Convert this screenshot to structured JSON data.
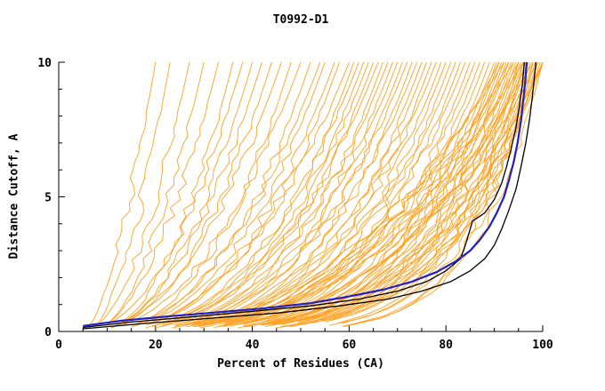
{
  "chart_data": {
    "type": "line",
    "title": "T0992-D1",
    "xlabel": "Percent of Residues (CA)",
    "ylabel": "Distance Cutoff, A",
    "xlim": [
      0,
      100
    ],
    "ylim": [
      0,
      10
    ],
    "x_ticks": [
      0,
      20,
      40,
      60,
      80,
      100
    ],
    "y_ticks": [
      0,
      5,
      10
    ],
    "x_minor_step": 5,
    "y_minor_step": 1,
    "grid": false,
    "legend": "none",
    "colors": {
      "background": "#FFFFFF",
      "axis": "#000000",
      "ensemble": "#FFA020",
      "highlight_blue": "#2020C8",
      "highlight_black": "#000000"
    },
    "ensemble_curves": {
      "description": "orange server-model cumulative accuracy curves; each param is [x_start_percent, x_at_cutoff_10, shape_exponent]",
      "color": "#FFA020",
      "stroke_width": 0.9,
      "seed": 1337,
      "points_per_curve": 32,
      "jitter_amplitude": 2.2,
      "params": [
        [
          5,
          20,
          1.6
        ],
        [
          6,
          23,
          1.7
        ],
        [
          5.5,
          27,
          1.8
        ],
        [
          7,
          30,
          1.8
        ],
        [
          6,
          33,
          1.9
        ],
        [
          8,
          36,
          2.0
        ],
        [
          5,
          38,
          2.0
        ],
        [
          6.5,
          40,
          2.1
        ],
        [
          7,
          42,
          2.0
        ],
        [
          5.5,
          44,
          2.2
        ],
        [
          6,
          46,
          2.1
        ],
        [
          8,
          48,
          2.3
        ],
        [
          5,
          50,
          2.2
        ],
        [
          7,
          52,
          2.4
        ],
        [
          6,
          54,
          2.3
        ],
        [
          5.5,
          55,
          2.5
        ],
        [
          8,
          57,
          2.4
        ],
        [
          6,
          58,
          2.6
        ],
        [
          5,
          60,
          2.5
        ],
        [
          7,
          61,
          2.7
        ],
        [
          6.5,
          62,
          2.6
        ],
        [
          5.5,
          63,
          2.8
        ],
        [
          8,
          64,
          2.7
        ],
        [
          6,
          65,
          2.9
        ],
        [
          5,
          66,
          2.8
        ],
        [
          7,
          67,
          3.0
        ],
        [
          6,
          68,
          2.9
        ],
        [
          5.5,
          69,
          3.1
        ],
        [
          8,
          70,
          3.0
        ],
        [
          6.5,
          71,
          3.2
        ],
        [
          5,
          72,
          3.1
        ],
        [
          7,
          73,
          3.3
        ],
        [
          6,
          74,
          3.2
        ],
        [
          5.5,
          75,
          3.4
        ],
        [
          8,
          76,
          3.3
        ],
        [
          6,
          77,
          3.5
        ],
        [
          5,
          78,
          3.4
        ],
        [
          7,
          79,
          3.6
        ],
        [
          6.5,
          80,
          3.5
        ],
        [
          5.5,
          81,
          3.7
        ],
        [
          8,
          82,
          3.6
        ],
        [
          6,
          83,
          3.8
        ],
        [
          5,
          84,
          3.7
        ],
        [
          7,
          85,
          3.9
        ],
        [
          6,
          86,
          3.8
        ],
        [
          5.5,
          87,
          4.0
        ],
        [
          8,
          88,
          3.9
        ],
        [
          6.5,
          89,
          4.1
        ],
        [
          5,
          90,
          4.0
        ],
        [
          7,
          90.5,
          4.2
        ],
        [
          6,
          91,
          4.1
        ],
        [
          5.5,
          91.5,
          4.3
        ],
        [
          8,
          92,
          4.2
        ],
        [
          6,
          92.5,
          4.4
        ],
        [
          5,
          93,
          4.3
        ],
        [
          7,
          93.5,
          4.5
        ],
        [
          6.5,
          94,
          4.4
        ],
        [
          5.5,
          94.5,
          4.6
        ],
        [
          8,
          95,
          4.5
        ],
        [
          6,
          95.5,
          4.7
        ],
        [
          5,
          96,
          4.6
        ],
        [
          7,
          96.5,
          4.8
        ],
        [
          6,
          97,
          4.7
        ],
        [
          5.5,
          97.5,
          4.9
        ],
        [
          8,
          98,
          4.8
        ],
        [
          6.5,
          98.5,
          5.0
        ],
        [
          5,
          99,
          4.9
        ],
        [
          7,
          99.5,
          5.1
        ],
        [
          6,
          100,
          5.0
        ],
        [
          5.5,
          100,
          4.2
        ],
        [
          8,
          100,
          3.6
        ],
        [
          6,
          99,
          3.2
        ],
        [
          5,
          98,
          2.9
        ],
        [
          7,
          97,
          3.3
        ],
        [
          6.5,
          96,
          2.7
        ],
        [
          5.5,
          95,
          3.1
        ],
        [
          8,
          94,
          2.5
        ],
        [
          6,
          93,
          3.0
        ],
        [
          5,
          92,
          2.6
        ],
        [
          7,
          91,
          2.9
        ],
        [
          6,
          96,
          6.5
        ],
        [
          5.5,
          98,
          7.0
        ],
        [
          7,
          99,
          6.0
        ],
        [
          6,
          100,
          6.8
        ],
        [
          5,
          97,
          7.5
        ],
        [
          8,
          95,
          6.2
        ]
      ]
    },
    "highlight_series": [
      {
        "name": "model-black-1",
        "color": "#000000",
        "width": 1.3,
        "points": [
          [
            5,
            0.15
          ],
          [
            15,
            0.35
          ],
          [
            28,
            0.55
          ],
          [
            40,
            0.75
          ],
          [
            52,
            0.95
          ],
          [
            62,
            1.2
          ],
          [
            70,
            1.5
          ],
          [
            76,
            1.85
          ],
          [
            80,
            2.25
          ],
          [
            83,
            2.7
          ],
          [
            84,
            3.2
          ],
          [
            85,
            3.8
          ],
          [
            85.5,
            4.1
          ],
          [
            88,
            4.4
          ],
          [
            90,
            4.9
          ],
          [
            91.5,
            5.5
          ],
          [
            92.5,
            6.1
          ],
          [
            93.5,
            6.8
          ],
          [
            94.5,
            7.6
          ],
          [
            95.2,
            8.4
          ],
          [
            95.8,
            9.2
          ],
          [
            96.2,
            10
          ]
        ]
      },
      {
        "name": "model-black-2",
        "color": "#000000",
        "width": 1.3,
        "points": [
          [
            5,
            0.1
          ],
          [
            18,
            0.3
          ],
          [
            32,
            0.5
          ],
          [
            46,
            0.7
          ],
          [
            58,
            0.95
          ],
          [
            68,
            1.2
          ],
          [
            75,
            1.5
          ],
          [
            81,
            1.85
          ],
          [
            85,
            2.25
          ],
          [
            88,
            2.7
          ],
          [
            90,
            3.2
          ],
          [
            91.5,
            3.8
          ],
          [
            93,
            4.5
          ],
          [
            94.5,
            5.3
          ],
          [
            95.5,
            6.1
          ],
          [
            96.5,
            7.0
          ],
          [
            97.3,
            7.9
          ],
          [
            97.9,
            8.8
          ],
          [
            98.3,
            9.5
          ],
          [
            98.6,
            10
          ]
        ]
      },
      {
        "name": "model-blue",
        "color": "#2020C8",
        "width": 2.2,
        "points": [
          [
            5,
            0.2
          ],
          [
            13,
            0.4
          ],
          [
            22,
            0.55
          ],
          [
            32,
            0.7
          ],
          [
            42,
            0.85
          ],
          [
            52,
            1.05
          ],
          [
            60,
            1.3
          ],
          [
            67,
            1.55
          ],
          [
            73,
            1.85
          ],
          [
            78,
            2.2
          ],
          [
            82,
            2.6
          ],
          [
            85,
            3.0
          ],
          [
            87,
            3.4
          ],
          [
            89,
            3.9
          ],
          [
            90.5,
            4.4
          ],
          [
            92,
            5.0
          ],
          [
            93,
            5.6
          ],
          [
            94,
            6.3
          ],
          [
            94.8,
            7.0
          ],
          [
            95.5,
            7.8
          ],
          [
            96,
            8.6
          ],
          [
            96.4,
            9.3
          ],
          [
            96.7,
            10
          ]
        ]
      }
    ]
  }
}
